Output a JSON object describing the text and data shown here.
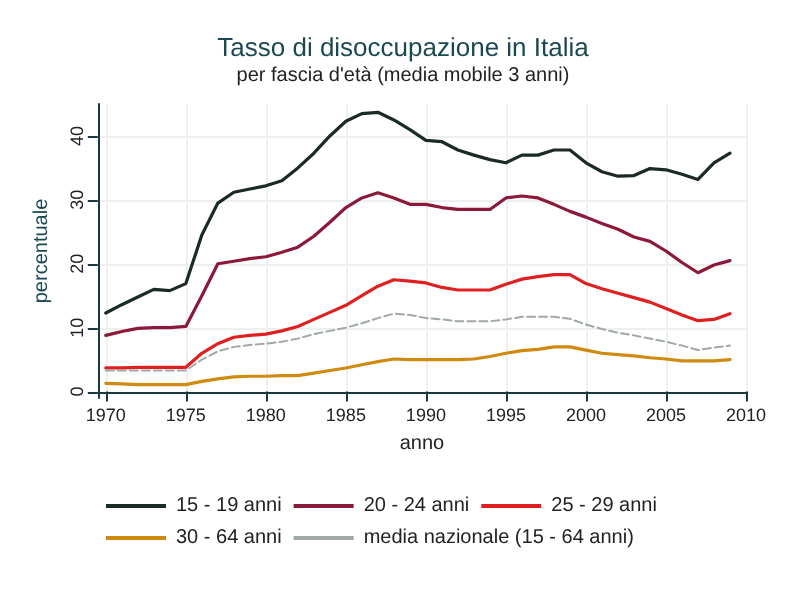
{
  "chart_data": {
    "type": "line",
    "title": "Tasso di disoccupazione in Italia",
    "subtitle": "per fascia d'età (media mobile 3 anni)",
    "xlabel": "anno",
    "ylabel": "percentuale",
    "x": [
      1970,
      1971,
      1972,
      1973,
      1974,
      1975,
      1976,
      1977,
      1978,
      1979,
      1980,
      1981,
      1982,
      1983,
      1984,
      1985,
      1986,
      1987,
      1988,
      1989,
      1990,
      1991,
      1992,
      1993,
      1994,
      1995,
      1996,
      1997,
      1998,
      1999,
      2000,
      2001,
      2002,
      2003,
      2004,
      2005,
      2006,
      2007,
      2008,
      2009
    ],
    "series": [
      {
        "name": "15 - 19 anni",
        "color": "#1a2a24",
        "line_style": "solid",
        "values": [
          12.3,
          13.6,
          14.8,
          16,
          15.8,
          16.9,
          24.5,
          29.5,
          31.2,
          31.7,
          32.2,
          33,
          35,
          37.3,
          40,
          42.3,
          43.5,
          43.7,
          42.5,
          41,
          39.3,
          39.1,
          37.8,
          37,
          36.3,
          35.8,
          37,
          37,
          37.8,
          37.8,
          35.8,
          34.4,
          33.7,
          33.8,
          34.9,
          34.7,
          34,
          33.2,
          35.8,
          37.3
        ]
      },
      {
        "name": "20 - 24 anni",
        "color": "#8b1a3a",
        "line_style": "solid",
        "values": [
          8.8,
          9.4,
          9.9,
          10,
          10,
          10.2,
          15,
          20,
          20.4,
          20.8,
          21.1,
          21.8,
          22.6,
          24.3,
          26.5,
          28.8,
          30.3,
          31.1,
          30.3,
          29.3,
          29.3,
          28.8,
          28.5,
          28.5,
          28.5,
          30.3,
          30.6,
          30.3,
          29.3,
          28.2,
          27.3,
          26.3,
          25.4,
          24.2,
          23.5,
          22,
          20.2,
          18.6,
          19.8,
          20.5
        ]
      },
      {
        "name": "25 - 29 anni",
        "color": "#e02020",
        "line_style": "solid",
        "values": [
          3.7,
          3.7,
          3.8,
          3.8,
          3.8,
          3.8,
          6,
          7.5,
          8.5,
          8.8,
          9,
          9.5,
          10.2,
          11.3,
          12.4,
          13.5,
          15,
          16.5,
          17.5,
          17.3,
          17,
          16.3,
          15.9,
          15.9,
          15.9,
          16.8,
          17.6,
          18,
          18.3,
          18.3,
          16.9,
          16.1,
          15.4,
          14.7,
          14,
          13,
          12,
          11.1,
          11.3,
          12.2
        ]
      },
      {
        "name": "30 - 64 anni",
        "color": "#d08a10",
        "line_style": "solid",
        "values": [
          1.3,
          1.2,
          1.1,
          1.1,
          1.1,
          1.1,
          1.6,
          2,
          2.3,
          2.4,
          2.4,
          2.5,
          2.5,
          2.9,
          3.3,
          3.7,
          4.2,
          4.7,
          5.1,
          5,
          5,
          5,
          5,
          5.1,
          5.5,
          6,
          6.4,
          6.6,
          7,
          7,
          6.5,
          6,
          5.8,
          5.6,
          5.3,
          5.1,
          4.8,
          4.8,
          4.8,
          5
        ]
      },
      {
        "name": "media nazionale (15 - 64 anni)",
        "color": "#a0a8a8",
        "line_style": "dashed",
        "values": [
          3.3,
          3.3,
          3.3,
          3.3,
          3.3,
          3.3,
          5,
          6.3,
          7,
          7.3,
          7.5,
          7.8,
          8.3,
          9,
          9.5,
          10,
          10.7,
          11.5,
          12.2,
          12,
          11.5,
          11.3,
          11,
          11,
          11,
          11.3,
          11.7,
          11.7,
          11.7,
          11.4,
          10.5,
          9.8,
          9.2,
          8.8,
          8.3,
          7.8,
          7.2,
          6.5,
          6.9,
          7.2
        ]
      }
    ],
    "xlim": [
      1969.5,
      2010
    ],
    "xticks": [
      1970,
      1975,
      1980,
      1985,
      1990,
      1995,
      2000,
      2005,
      2010
    ],
    "ylim": [
      -1,
      45
    ],
    "yticks": [
      0,
      10,
      20,
      30,
      40
    ],
    "grid": true,
    "legend": "bottom",
    "marker": "none"
  }
}
